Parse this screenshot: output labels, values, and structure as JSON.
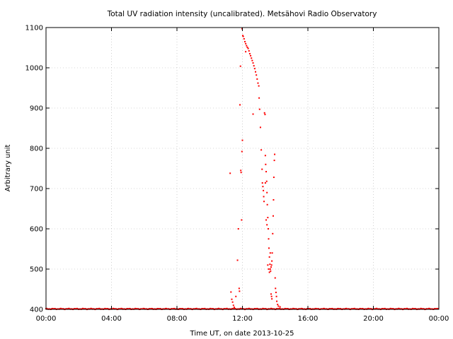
{
  "chart_data": {
    "type": "scatter",
    "title": "Total UV radiation intensity (uncalibrated). Metsähovi Radio Observatory",
    "xlabel": "Time UT, on date 2013-10-25",
    "ylabel": "Arbitrary unit",
    "xlim": [
      0,
      24
    ],
    "ylim": [
      400,
      1100
    ],
    "x_ticks": [
      {
        "value": 0,
        "label": "00:00"
      },
      {
        "value": 4,
        "label": "04:00"
      },
      {
        "value": 8,
        "label": "08:00"
      },
      {
        "value": 12,
        "label": "12:00"
      },
      {
        "value": 16,
        "label": "16:00"
      },
      {
        "value": 20,
        "label": "20:00"
      },
      {
        "value": 24,
        "label": "00:00"
      }
    ],
    "y_ticks": [
      {
        "value": 400,
        "label": "400"
      },
      {
        "value": 500,
        "label": "500"
      },
      {
        "value": 600,
        "label": "600"
      },
      {
        "value": 700,
        "label": "700"
      },
      {
        "value": 800,
        "label": "800"
      },
      {
        "value": 900,
        "label": "900"
      },
      {
        "value": 1000,
        "label": "1000"
      },
      {
        "value": 1100,
        "label": "1100"
      }
    ],
    "grid": true,
    "marker_color": "#ff0000",
    "baseline": {
      "value": 401,
      "x_start": 0,
      "x_end": 24,
      "step_hours": 0.05
    },
    "points": [
      [
        11.25,
        738
      ],
      [
        11.3,
        443
      ],
      [
        11.35,
        425
      ],
      [
        11.4,
        418
      ],
      [
        11.45,
        410
      ],
      [
        11.5,
        405
      ],
      [
        11.6,
        432
      ],
      [
        11.7,
        522
      ],
      [
        11.75,
        600
      ],
      [
        11.8,
        452
      ],
      [
        11.82,
        445
      ],
      [
        11.85,
        908
      ],
      [
        11.88,
        1004
      ],
      [
        11.9,
        745
      ],
      [
        11.92,
        740
      ],
      [
        11.95,
        622
      ],
      [
        11.97,
        792
      ],
      [
        12.0,
        820
      ],
      [
        11.98,
        1097
      ],
      [
        12.02,
        1080
      ],
      [
        12.05,
        1078
      ],
      [
        12.1,
        1072
      ],
      [
        12.15,
        1065
      ],
      [
        12.2,
        1060
      ],
      [
        12.25,
        1055
      ],
      [
        12.3,
        1051
      ],
      [
        12.35,
        1048
      ],
      [
        12.4,
        1042
      ],
      [
        12.45,
        1035
      ],
      [
        12.5,
        1030
      ],
      [
        12.55,
        1024
      ],
      [
        12.6,
        1018
      ],
      [
        12.65,
        1012
      ],
      [
        12.7,
        1005
      ],
      [
        12.75,
        998
      ],
      [
        12.8,
        990
      ],
      [
        12.85,
        982
      ],
      [
        12.9,
        972
      ],
      [
        12.95,
        962
      ],
      [
        13.0,
        955
      ],
      [
        13.02,
        925
      ],
      [
        12.2,
        1040
      ],
      [
        12.65,
        885
      ],
      [
        13.05,
        897
      ],
      [
        13.1,
        852
      ],
      [
        13.15,
        796
      ],
      [
        13.2,
        748
      ],
      [
        13.22,
        714
      ],
      [
        13.25,
        705
      ],
      [
        13.28,
        695
      ],
      [
        13.3,
        680
      ],
      [
        13.32,
        668
      ],
      [
        13.35,
        888
      ],
      [
        13.38,
        884
      ],
      [
        13.4,
        782
      ],
      [
        13.42,
        760
      ],
      [
        13.45,
        742
      ],
      [
        13.48,
        718
      ],
      [
        13.5,
        690
      ],
      [
        13.52,
        660
      ],
      [
        13.55,
        628
      ],
      [
        13.58,
        600
      ],
      [
        13.6,
        575
      ],
      [
        13.62,
        552
      ],
      [
        13.65,
        530
      ],
      [
        13.68,
        512
      ],
      [
        13.7,
        500
      ],
      [
        13.72,
        495
      ],
      [
        13.75,
        505
      ],
      [
        13.78,
        510
      ],
      [
        13.8,
        520
      ],
      [
        13.82,
        540
      ],
      [
        13.85,
        588
      ],
      [
        13.88,
        632
      ],
      [
        13.9,
        672
      ],
      [
        13.92,
        728
      ],
      [
        13.95,
        770
      ],
      [
        13.97,
        785
      ],
      [
        14.0,
        478
      ],
      [
        14.02,
        452
      ],
      [
        14.05,
        442
      ],
      [
        14.08,
        432
      ],
      [
        14.1,
        420
      ],
      [
        14.15,
        412
      ],
      [
        14.2,
        408
      ],
      [
        14.3,
        406
      ],
      [
        13.45,
        622
      ],
      [
        13.5,
        610
      ],
      [
        13.55,
        510
      ],
      [
        13.6,
        500
      ],
      [
        13.65,
        492
      ],
      [
        13.7,
        540
      ],
      [
        13.75,
        438
      ],
      [
        13.78,
        432
      ],
      [
        13.8,
        426
      ],
      [
        13.4,
        714
      ]
    ]
  }
}
